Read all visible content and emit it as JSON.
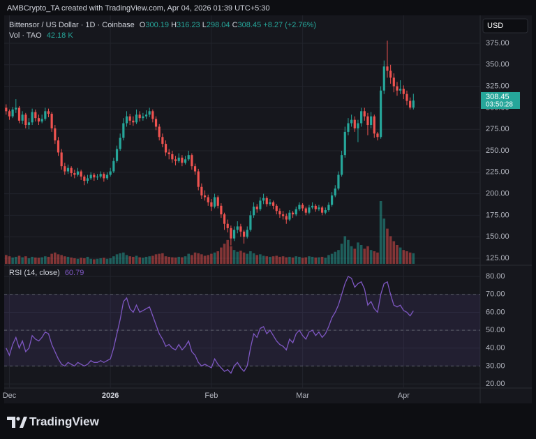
{
  "chart_data": {
    "type": "candlestick",
    "header": "AMBCrypto_TA created with TradingView.com, Apr 04, 2026 01:39 UTC+5:30",
    "title": "Bittensor / US Dollar · 1D · Coinbase",
    "ohlc_labels": [
      "O",
      "H",
      "L",
      "C"
    ],
    "change": "+8.27 (+2.76%)",
    "currency": "USD",
    "countdown": "03:50:28",
    "volume_title": "Vol · TAO",
    "volume_value_label": "42.18 K",
    "rsi_title": "RSI (14, close)",
    "watermark": "TradingView",
    "up_color": "#26a69a",
    "down_color": "#ef5350",
    "rsi_color": "#7e57c2",
    "grid": true,
    "ylim": [
      118.5,
      402.6
    ],
    "yticks": [
      {
        "value": 125,
        "label": "125.00"
      },
      {
        "value": 150,
        "label": "150.00"
      },
      {
        "value": 175,
        "label": "175.00"
      },
      {
        "value": 200,
        "label": "200.00"
      },
      {
        "value": 225,
        "label": "225.00"
      },
      {
        "value": 250,
        "label": "250.00"
      },
      {
        "value": 275,
        "label": "275.00"
      },
      {
        "value": 300,
        "label": "300.00"
      },
      {
        "value": 325,
        "label": "325.00"
      },
      {
        "value": 350,
        "label": "350.00"
      },
      {
        "value": 375,
        "label": "375.00"
      }
    ],
    "rsi_ylim": [
      17.7,
      85.5
    ],
    "rsi_yticks": [
      {
        "value": 20,
        "label": "20.00"
      },
      {
        "value": 30,
        "label": "30.00"
      },
      {
        "value": 40,
        "label": "40.00"
      },
      {
        "value": 50,
        "label": "50.00"
      },
      {
        "value": 60,
        "label": "60.00"
      },
      {
        "value": 70,
        "label": "70.00"
      },
      {
        "value": 80,
        "label": "80.00"
      }
    ],
    "rsi_levels": [
      70,
      50,
      30
    ],
    "xlim": [
      -0.6,
      145.5
    ],
    "xticks": [
      {
        "value": 1,
        "label": "Dec"
      },
      {
        "value": 32,
        "label": "2026"
      },
      {
        "value": 63,
        "label": "Feb"
      },
      {
        "value": 91,
        "label": "Mar"
      },
      {
        "value": 122,
        "label": "Apr"
      }
    ],
    "candles": [
      [
        300,
        304,
        292,
        296
      ],
      [
        296,
        298,
        286,
        290
      ],
      [
        290,
        301,
        288,
        298
      ],
      [
        298,
        310,
        294,
        300
      ],
      [
        300,
        302,
        282,
        285
      ],
      [
        285,
        296,
        281,
        292
      ],
      [
        292,
        294,
        276,
        280
      ],
      [
        280,
        288,
        275,
        283
      ],
      [
        283,
        299,
        280,
        295
      ],
      [
        295,
        298,
        284,
        288
      ],
      [
        288,
        292,
        280,
        284
      ],
      [
        284,
        292,
        282,
        287
      ],
      [
        287,
        300,
        285,
        296
      ],
      [
        296,
        299,
        289,
        293
      ],
      [
        293,
        295,
        272,
        276
      ],
      [
        276,
        280,
        258,
        262
      ],
      [
        262,
        266,
        244,
        248
      ],
      [
        248,
        252,
        228,
        232
      ],
      [
        232,
        236,
        222,
        226
      ],
      [
        226,
        234,
        223,
        230
      ],
      [
        230,
        232,
        220,
        224
      ],
      [
        224,
        228,
        218,
        222
      ],
      [
        222,
        230,
        220,
        226
      ],
      [
        226,
        228,
        216,
        220
      ],
      [
        220,
        222,
        210,
        215
      ],
      [
        215,
        222,
        212,
        218
      ],
      [
        218,
        225,
        216,
        222
      ],
      [
        222,
        224,
        215,
        219
      ],
      [
        219,
        223,
        216,
        220
      ],
      [
        220,
        226,
        218,
        223
      ],
      [
        223,
        225,
        214,
        218
      ],
      [
        218,
        225,
        216,
        222
      ],
      [
        222,
        230,
        220,
        226
      ],
      [
        226,
        242,
        224,
        238
      ],
      [
        238,
        256,
        236,
        252
      ],
      [
        252,
        270,
        250,
        265
      ],
      [
        265,
        288,
        262,
        282
      ],
      [
        282,
        296,
        278,
        290
      ],
      [
        290,
        293,
        280,
        285
      ],
      [
        285,
        290,
        279,
        283
      ],
      [
        283,
        298,
        281,
        292
      ],
      [
        292,
        296,
        284,
        288
      ],
      [
        288,
        294,
        285,
        290
      ],
      [
        290,
        297,
        287,
        292
      ],
      [
        292,
        300,
        289,
        296
      ],
      [
        296,
        298,
        283,
        287
      ],
      [
        287,
        290,
        274,
        278
      ],
      [
        278,
        281,
        262,
        266
      ],
      [
        266,
        270,
        254,
        258
      ],
      [
        258,
        262,
        244,
        248
      ],
      [
        248,
        252,
        240,
        246
      ],
      [
        246,
        250,
        236,
        240
      ],
      [
        240,
        244,
        233,
        238
      ],
      [
        238,
        247,
        236,
        242
      ],
      [
        242,
        245,
        232,
        236
      ],
      [
        236,
        244,
        234,
        240
      ],
      [
        240,
        250,
        238,
        245
      ],
      [
        245,
        247,
        228,
        232
      ],
      [
        232,
        235,
        222,
        226
      ],
      [
        226,
        229,
        204,
        208
      ],
      [
        208,
        212,
        194,
        198
      ],
      [
        198,
        204,
        192,
        196
      ],
      [
        196,
        199,
        186,
        190
      ],
      [
        190,
        194,
        180,
        185
      ],
      [
        185,
        200,
        183,
        196
      ],
      [
        196,
        198,
        183,
        186
      ],
      [
        186,
        189,
        172,
        176
      ],
      [
        176,
        178,
        158,
        165
      ],
      [
        165,
        170,
        155,
        160
      ],
      [
        160,
        163,
        140,
        148
      ],
      [
        148,
        162,
        145,
        158
      ],
      [
        158,
        168,
        154,
        162
      ],
      [
        162,
        165,
        150,
        156
      ],
      [
        156,
        158,
        142,
        150
      ],
      [
        150,
        162,
        148,
        158
      ],
      [
        158,
        180,
        156,
        175
      ],
      [
        175,
        190,
        172,
        185
      ],
      [
        185,
        188,
        178,
        182
      ],
      [
        182,
        196,
        180,
        192
      ],
      [
        192,
        200,
        188,
        195
      ],
      [
        195,
        197,
        185,
        188
      ],
      [
        188,
        194,
        186,
        190
      ],
      [
        190,
        192,
        182,
        186
      ],
      [
        186,
        188,
        176,
        180
      ],
      [
        180,
        183,
        172,
        176
      ],
      [
        176,
        180,
        170,
        174
      ],
      [
        174,
        177,
        165,
        170
      ],
      [
        170,
        181,
        168,
        178
      ],
      [
        178,
        180,
        172,
        176
      ],
      [
        176,
        185,
        174,
        182
      ],
      [
        182,
        190,
        180,
        187
      ],
      [
        187,
        189,
        180,
        183
      ],
      [
        183,
        185,
        175,
        178
      ],
      [
        178,
        187,
        176,
        184
      ],
      [
        184,
        190,
        182,
        186
      ],
      [
        186,
        188,
        179,
        182
      ],
      [
        182,
        187,
        180,
        184
      ],
      [
        184,
        186,
        175,
        178
      ],
      [
        178,
        184,
        176,
        181
      ],
      [
        181,
        190,
        179,
        187
      ],
      [
        187,
        202,
        185,
        198
      ],
      [
        198,
        210,
        196,
        206
      ],
      [
        206,
        226,
        204,
        222
      ],
      [
        222,
        250,
        220,
        245
      ],
      [
        245,
        278,
        242,
        272
      ],
      [
        272,
        288,
        268,
        282
      ],
      [
        282,
        292,
        278,
        286
      ],
      [
        286,
        290,
        272,
        276
      ],
      [
        276,
        286,
        260,
        282
      ],
      [
        282,
        300,
        278,
        296
      ],
      [
        296,
        300,
        285,
        290
      ],
      [
        290,
        294,
        268,
        280
      ],
      [
        280,
        295,
        276,
        290
      ],
      [
        290,
        292,
        265,
        270
      ],
      [
        270,
        272,
        262,
        266
      ],
      [
        266,
        325,
        264,
        320
      ],
      [
        320,
        355,
        316,
        348
      ],
      [
        348,
        378,
        335,
        343
      ],
      [
        343,
        350,
        328,
        335
      ],
      [
        335,
        340,
        318,
        325
      ],
      [
        325,
        330,
        314,
        320
      ],
      [
        320,
        332,
        316,
        322
      ],
      [
        322,
        326,
        310,
        316
      ],
      [
        316,
        320,
        303,
        308
      ],
      [
        308,
        312,
        298,
        300.19
      ],
      [
        300.19,
        316.23,
        298.04,
        308.45
      ]
    ],
    "volume": [
      35,
      30,
      25,
      28,
      32,
      26,
      30,
      22,
      28,
      25,
      24,
      26,
      30,
      28,
      40,
      45,
      38,
      35,
      30,
      28,
      25,
      22,
      20,
      24,
      22,
      28,
      20,
      18,
      20,
      22,
      24,
      20,
      22,
      30,
      38,
      42,
      45,
      35,
      30,
      28,
      32,
      26,
      24,
      28,
      30,
      32,
      38,
      40,
      42,
      30,
      28,
      26,
      25,
      28,
      26,
      30,
      40,
      35,
      45,
      42,
      38,
      32,
      35,
      40,
      45,
      50,
      65,
      80,
      95,
      70,
      55,
      48,
      52,
      45,
      40,
      50,
      42,
      35,
      38,
      32,
      30,
      28,
      30,
      32,
      28,
      30,
      26,
      28,
      25,
      30,
      28,
      24,
      26,
      30,
      28,
      25,
      26,
      28,
      24,
      35,
      40,
      48,
      55,
      80,
      110,
      95,
      70,
      60,
      85,
      75,
      60,
      70,
      55,
      50,
      45,
      250,
      180,
      140,
      110,
      90,
      75,
      65,
      55,
      50,
      45,
      42.18
    ],
    "rsi": [
      40,
      36,
      42,
      46,
      40,
      44,
      38,
      40,
      47,
      45,
      44,
      46,
      49,
      48,
      42,
      38,
      34,
      31,
      30,
      32,
      31,
      30,
      32,
      31,
      30,
      31,
      33,
      32,
      32,
      33,
      32,
      33,
      34,
      40,
      48,
      56,
      66,
      68,
      62,
      60,
      64,
      60,
      61,
      62,
      63,
      58,
      53,
      48,
      45,
      41,
      42,
      40,
      39,
      42,
      39,
      41,
      44,
      38,
      36,
      32,
      30,
      31,
      30,
      29,
      34,
      31,
      29,
      27,
      28,
      26,
      30,
      32,
      29,
      27,
      30,
      40,
      48,
      46,
      51,
      52,
      48,
      50,
      47,
      44,
      42,
      41,
      39,
      45,
      43,
      48,
      50,
      47,
      45,
      49,
      50,
      47,
      49,
      46,
      48,
      52,
      57,
      60,
      64,
      70,
      76,
      80,
      79,
      74,
      76,
      77,
      73,
      64,
      66,
      62,
      60,
      70,
      76,
      77,
      70,
      64,
      63,
      64,
      61,
      60,
      58,
      60.79
    ]
  }
}
